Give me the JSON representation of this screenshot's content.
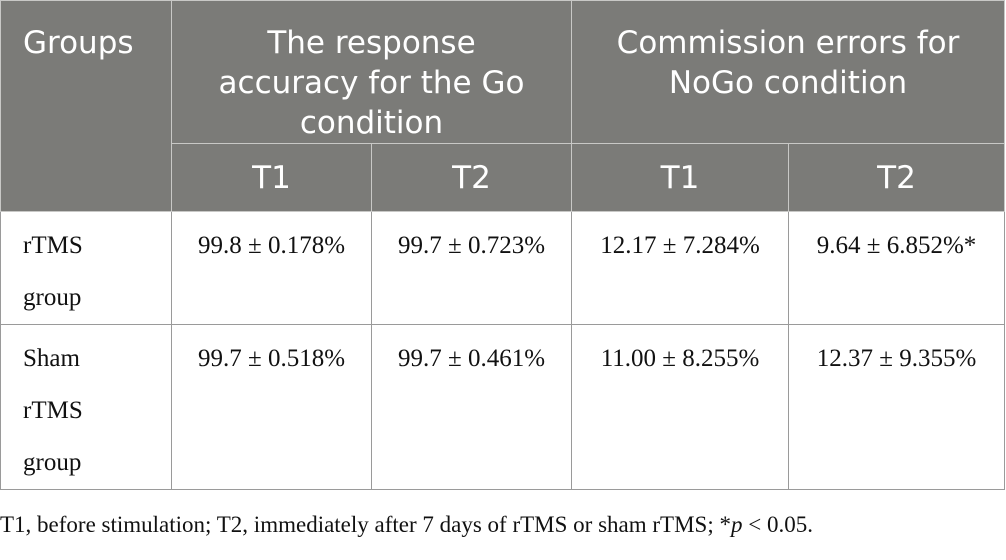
{
  "table": {
    "header": {
      "groups": "Groups",
      "go_accuracy_lines": [
        "The response",
        "accuracy for the Go",
        "condition"
      ],
      "nogo_errors_lines": [
        "Commission errors for",
        "NoGo condition"
      ],
      "sub": [
        "T1",
        "T2",
        "T1",
        "T2"
      ]
    },
    "rows": [
      {
        "group_lines": [
          "rTMS",
          "group"
        ],
        "values": [
          "99.8 ± 0.178%",
          "99.7 ± 0.723%",
          "12.17 ± 7.284%",
          "9.64 ± 6.852%*"
        ]
      },
      {
        "group_lines": [
          "Sham",
          "rTMS",
          "group"
        ],
        "values": [
          "99.7 ± 0.518%",
          "99.7 ± 0.461%",
          "11.00 ± 8.255%",
          "12.37 ± 9.355%"
        ]
      }
    ]
  },
  "footnote": {
    "pre": "T1, before stimulation; T2, immediately after 7 days of rTMS or sham rTMS; *",
    "p": "p",
    "post": " < 0.05."
  }
}
